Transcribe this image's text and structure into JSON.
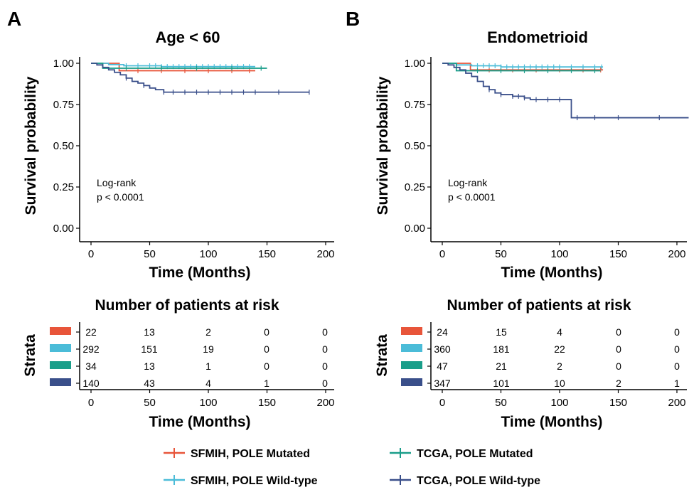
{
  "legend": {
    "items": [
      {
        "label": "SFMIH, POLE Mutated",
        "color": "#e8553a"
      },
      {
        "label": "TCGA, POLE Mutated",
        "color": "#1a9e8a"
      },
      {
        "label": "SFMIH, POLE Wild-type",
        "color": "#4bbcd8"
      },
      {
        "label": "TCGA, POLE Wild-type",
        "color": "#3a4f8a"
      }
    ]
  },
  "chart_data": [
    {
      "type": "line",
      "panel_letter": "A",
      "title": "Age < 60",
      "xlabel": "Time (Months)",
      "ylabel": "Survival probability",
      "xlim": [
        0,
        210
      ],
      "ylim": [
        0,
        1.05
      ],
      "xticks": [
        0,
        50,
        100,
        150,
        200
      ],
      "yticks": [
        0.0,
        0.25,
        0.5,
        0.75,
        1.0
      ],
      "ytick_labels": [
        "0.00",
        "0.25",
        "0.50",
        "0.75",
        "1.00"
      ],
      "annotation": [
        "Log-rank",
        "p < 0.0001"
      ],
      "series": [
        {
          "color": "#e8553a",
          "x": [
            0,
            24,
            24,
            140
          ],
          "y": [
            1.0,
            1.0,
            0.955,
            0.955
          ],
          "censor_x": [
            40,
            60,
            80,
            100,
            120,
            135
          ]
        },
        {
          "color": "#4bbcd8",
          "x": [
            0,
            15,
            28,
            60,
            140
          ],
          "y": [
            1.0,
            0.992,
            0.985,
            0.98,
            0.98
          ],
          "censor_x": [
            30,
            40,
            50,
            55,
            60,
            65,
            70,
            75,
            80,
            85,
            90,
            95,
            100,
            105,
            110,
            115,
            120,
            125,
            130,
            135
          ]
        },
        {
          "color": "#1a9e8a",
          "x": [
            0,
            10,
            10,
            150
          ],
          "y": [
            1.0,
            1.0,
            0.97,
            0.97
          ],
          "censor_x": [
            30,
            60,
            90,
            120,
            145
          ]
        },
        {
          "color": "#3a4f8a",
          "x": [
            0,
            5,
            10,
            15,
            20,
            25,
            30,
            35,
            40,
            45,
            50,
            55,
            62,
            186
          ],
          "y": [
            1.0,
            0.99,
            0.975,
            0.96,
            0.945,
            0.93,
            0.91,
            0.89,
            0.88,
            0.865,
            0.85,
            0.84,
            0.825,
            0.825
          ],
          "censor_x": [
            30,
            45,
            62,
            70,
            80,
            90,
            100,
            110,
            120,
            130,
            140,
            160,
            186
          ]
        }
      ],
      "risk_table": {
        "title": "Number of patients at risk",
        "ylabel": "Strata",
        "xlabel": "Time (Months)",
        "times": [
          0,
          50,
          100,
          150,
          200
        ],
        "rows": [
          {
            "color": "#e8553a",
            "counts": [
              "22",
              "13",
              "2",
              "0",
              "0"
            ]
          },
          {
            "color": "#4bbcd8",
            "counts": [
              "292",
              "151",
              "19",
              "0",
              "0"
            ]
          },
          {
            "color": "#1a9e8a",
            "counts": [
              "34",
              "13",
              "1",
              "0",
              "0"
            ]
          },
          {
            "color": "#3a4f8a",
            "counts": [
              "140",
              "43",
              "4",
              "1",
              "0"
            ]
          }
        ]
      }
    },
    {
      "type": "line",
      "panel_letter": "B",
      "title": "Endometrioid",
      "xlabel": "Time (Months)",
      "ylabel": "Survival probability",
      "xlim": [
        0,
        210
      ],
      "ylim": [
        0,
        1.05
      ],
      "xticks": [
        0,
        50,
        100,
        150,
        200
      ],
      "yticks": [
        0.0,
        0.25,
        0.5,
        0.75,
        1.0
      ],
      "ytick_labels": [
        "0.00",
        "0.25",
        "0.50",
        "0.75",
        "1.00"
      ],
      "annotation": [
        "Log-rank",
        "p < 0.0001"
      ],
      "series": [
        {
          "color": "#e8553a",
          "x": [
            0,
            24,
            24,
            137
          ],
          "y": [
            1.0,
            1.0,
            0.96,
            0.96
          ],
          "censor_x": [
            40,
            60,
            80,
            100,
            120,
            135
          ]
        },
        {
          "color": "#4bbcd8",
          "x": [
            0,
            12,
            25,
            50,
            137
          ],
          "y": [
            1.0,
            0.99,
            0.985,
            0.978,
            0.978
          ],
          "censor_x": [
            30,
            35,
            40,
            45,
            50,
            55,
            60,
            65,
            70,
            75,
            80,
            85,
            90,
            95,
            100,
            110,
            120,
            130,
            136
          ]
        },
        {
          "color": "#1a9e8a",
          "x": [
            0,
            12,
            12,
            135
          ],
          "y": [
            1.0,
            1.0,
            0.955,
            0.955
          ],
          "censor_x": [
            30,
            50,
            70,
            90,
            110,
            130
          ]
        },
        {
          "color": "#3a4f8a",
          "x": [
            0,
            5,
            10,
            15,
            20,
            25,
            30,
            35,
            40,
            45,
            50,
            60,
            70,
            75,
            110,
            110,
            210
          ],
          "y": [
            1.0,
            0.99,
            0.975,
            0.96,
            0.94,
            0.92,
            0.89,
            0.86,
            0.84,
            0.82,
            0.81,
            0.8,
            0.79,
            0.78,
            0.78,
            0.67,
            0.67
          ],
          "censor_x": [
            40,
            50,
            60,
            65,
            70,
            80,
            90,
            100,
            115,
            130,
            150,
            185
          ]
        }
      ],
      "risk_table": {
        "title": "Number of patients at risk",
        "ylabel": "Strata",
        "xlabel": "Time (Months)",
        "times": [
          0,
          50,
          100,
          150,
          200
        ],
        "rows": [
          {
            "color": "#e8553a",
            "counts": [
              "24",
              "15",
              "4",
              "0",
              "0"
            ]
          },
          {
            "color": "#4bbcd8",
            "counts": [
              "360",
              "181",
              "22",
              "0",
              "0"
            ]
          },
          {
            "color": "#1a9e8a",
            "counts": [
              "47",
              "21",
              "2",
              "0",
              "0"
            ]
          },
          {
            "color": "#3a4f8a",
            "counts": [
              "347",
              "101",
              "10",
              "2",
              "1"
            ]
          }
        ]
      }
    }
  ]
}
